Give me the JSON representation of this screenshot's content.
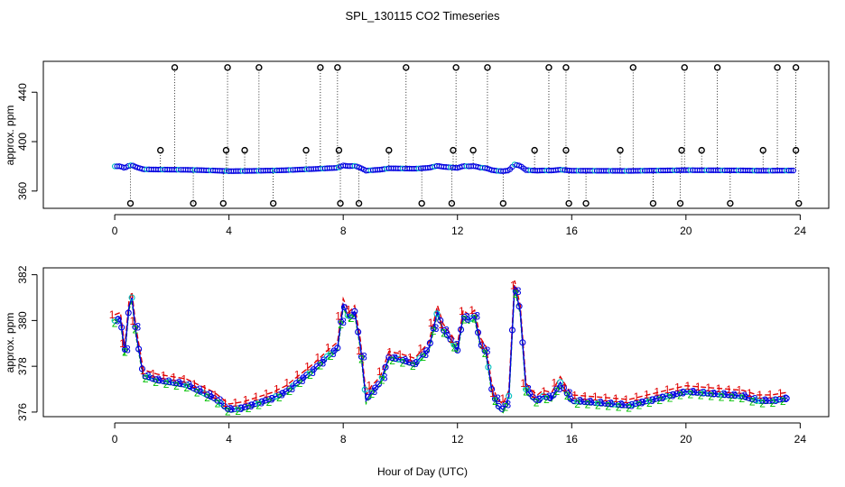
{
  "title": "SPL_130115  CO2 Timeseries",
  "xlabel": "Hour of Day (UTC)",
  "colors": {
    "s1": "#e00000",
    "s2": "#00c000",
    "s3": "#0000e0",
    "sc": "#00c0c0",
    "axis": "#000000"
  },
  "chart_data": [
    {
      "type": "scatter",
      "panel": "top",
      "ylabel": "approx. ppm",
      "xlim": [
        -2.5,
        25
      ],
      "ylim": [
        346,
        465
      ],
      "xticks": [
        0,
        4,
        8,
        12,
        16,
        20,
        24
      ],
      "yticks": [
        360,
        400,
        440
      ],
      "baseline_ppm": 378,
      "high_clip_ppm": 460,
      "low_clip_ppm": 350,
      "mid_flag_ppm": 393,
      "high_flags_h": [
        2.1,
        3.95,
        5.05,
        7.2,
        7.8,
        10.2,
        11.95,
        13.05,
        15.2,
        15.8,
        18.15,
        19.95,
        21.1,
        23.2,
        23.85
      ],
      "low_flags_h": [
        0.55,
        2.75,
        3.8,
        5.55,
        7.9,
        8.55,
        10.75,
        11.8,
        13.6,
        15.9,
        16.5,
        18.85,
        19.8,
        21.55,
        23.95
      ],
      "mid_flags_h": [
        1.6,
        3.9,
        4.55,
        6.7,
        7.85,
        9.6,
        11.85,
        12.55,
        14.7,
        15.8,
        17.7,
        19.85,
        20.55,
        22.7,
        23.85
      ]
    },
    {
      "type": "line",
      "panel": "bottom",
      "ylabel": "approx. ppm",
      "xlim": [
        -2.5,
        25
      ],
      "ylim": [
        375.8,
        382.3
      ],
      "xticks": [
        0,
        4,
        8,
        12,
        16,
        20,
        24
      ],
      "yticks": [
        376,
        378,
        380,
        382
      ],
      "series": [
        {
          "name": "1",
          "color": "#e00000",
          "label": "1"
        },
        {
          "name": "2",
          "color": "#00c000",
          "label": "2"
        },
        {
          "name": "3",
          "color": "#0000e0",
          "label": "3"
        }
      ],
      "x": [
        0.0,
        0.2,
        0.35,
        0.5,
        0.6,
        0.75,
        1.0,
        1.5,
        2.0,
        2.5,
        3.0,
        3.5,
        4.0,
        4.5,
        5.0,
        5.5,
        6.0,
        6.5,
        7.0,
        7.5,
        7.8,
        8.0,
        8.2,
        8.4,
        8.6,
        8.8,
        9.0,
        9.3,
        9.6,
        10.0,
        10.5,
        11.0,
        11.3,
        11.5,
        11.8,
        12.0,
        12.2,
        12.4,
        12.6,
        12.8,
        13.0,
        13.2,
        13.4,
        13.6,
        13.8,
        14.0,
        14.2,
        14.4,
        14.6,
        14.8,
        15.0,
        15.3,
        15.6,
        16.0,
        17.0,
        18.0,
        19.0,
        20.0,
        21.0,
        22.0,
        22.5,
        23.0,
        23.5
      ],
      "values": [
        380.0,
        380.1,
        378.6,
        380.6,
        381.0,
        379.4,
        377.6,
        377.4,
        377.3,
        377.2,
        376.9,
        376.6,
        376.1,
        376.2,
        376.4,
        376.6,
        376.9,
        377.4,
        377.9,
        378.5,
        378.8,
        380.7,
        380.1,
        380.4,
        378.9,
        376.5,
        376.9,
        377.3,
        378.4,
        378.3,
        378.1,
        378.8,
        380.4,
        379.6,
        379.1,
        378.7,
        380.2,
        380.0,
        380.2,
        379.0,
        378.6,
        377.0,
        376.3,
        376.1,
        376.7,
        381.5,
        380.4,
        377.0,
        376.7,
        376.5,
        376.7,
        376.6,
        377.3,
        376.5,
        376.4,
        376.3,
        376.6,
        376.9,
        376.8,
        376.7,
        376.5,
        376.5,
        376.6
      ]
    }
  ]
}
